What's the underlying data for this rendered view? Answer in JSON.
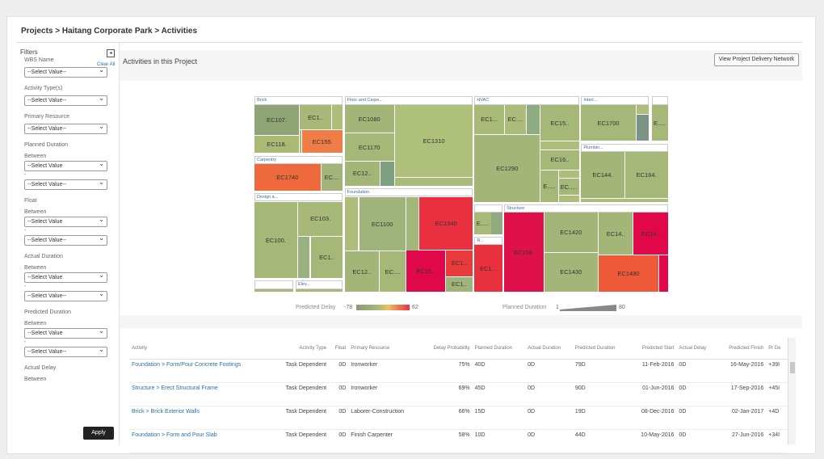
{
  "breadcrumb": "Projects > Haitang Corporate Park > Activities",
  "filters": {
    "title": "Filters",
    "clear_all": "Clear All",
    "apply": "Apply",
    "fields": [
      {
        "label": "WBS Name",
        "value": "--Select Value--"
      },
      {
        "label": "Activity Type(s)",
        "value": "--Select Value--"
      },
      {
        "label": "Primary Resource",
        "value": "--Select Value--"
      },
      {
        "label": "Planned Duration",
        "sub": "Between",
        "value": "--Select Value",
        "value2": "--Select Value--"
      },
      {
        "label": "Float",
        "sub": "Between",
        "value": "--Select Value",
        "value2": "--Select Value--"
      },
      {
        "label": "Actual Duration",
        "sub": "Between",
        "value": "--Select Value",
        "value2": "--Select Value--"
      },
      {
        "label": "Predicted Duration",
        "sub": "Between",
        "value": "--Select Value",
        "value2": "--Select Value--"
      },
      {
        "label": "Actual Delay",
        "sub": "Between"
      }
    ]
  },
  "main": {
    "title": "Activities in this Project",
    "network_button": "View Project Delivery Network"
  },
  "treemap": {
    "groups": [
      "Brick",
      "Floor and Carpe...",
      "HVAC",
      "Interi...",
      "",
      "Carpentry",
      "Plumbin...",
      "Design a...",
      "Foundation",
      "",
      "R...",
      "Structure",
      "",
      "Elev..."
    ],
    "tiles": [
      {
        "label": "EC107.",
        "color": "#8fa475"
      },
      {
        "label": "EC1..",
        "color": "#a9b878"
      },
      {
        "label": "",
        "color": "#adbe7a"
      },
      {
        "label": "EC118.",
        "color": "#a9ba75"
      },
      {
        "label": "",
        "color": "#a9ba78"
      },
      {
        "label": "EC155.",
        "color": "#ef7d45"
      },
      {
        "label": "EC1740",
        "color": "#ee6a3d"
      },
      {
        "label": "EC....",
        "color": "#a3b57a"
      },
      {
        "label": "EC100.",
        "color": "#a6b878"
      },
      {
        "label": "EC103.",
        "color": "#a8b878"
      },
      {
        "label": "",
        "color": "#99b17f"
      },
      {
        "label": "EC1..",
        "color": "#a6b878"
      },
      {
        "label": "",
        "color": "#a9ba78"
      },
      {
        "label": "",
        "color": "#a9ba78"
      },
      {
        "label": "EC1080",
        "color": "#a3b677"
      },
      {
        "label": "EC1170",
        "color": "#a6b878"
      },
      {
        "label": "EC12..",
        "color": "#a3b677"
      },
      {
        "label": "",
        "color": "#7fa080"
      },
      {
        "label": "EC1310",
        "color": "#afc07a"
      },
      {
        "label": "",
        "color": "#a9bb78"
      },
      {
        "label": "",
        "color": "#aebe7a"
      },
      {
        "label": "EC1100",
        "color": "#9fb47a"
      },
      {
        "label": "",
        "color": "#a3b77b"
      },
      {
        "label": "EC1340",
        "color": "#e8303f"
      },
      {
        "label": "EC12..",
        "color": "#a3b677"
      },
      {
        "label": "EC....",
        "color": "#a6b878"
      },
      {
        "label": "EC15..",
        "color": "#e0084a"
      },
      {
        "label": "EC1..",
        "color": "#e83a3a"
      },
      {
        "label": "EC1..",
        "color": "#9fb47a"
      },
      {
        "label": "EC1...",
        "color": "#a9ba78"
      },
      {
        "label": "EC....",
        "color": "#acbc7a"
      },
      {
        "label": "",
        "color": "#8fac80"
      },
      {
        "label": "EC15..",
        "color": "#a6b878"
      },
      {
        "label": "EC1290",
        "color": "#a3b677"
      },
      {
        "label": "",
        "color": "#aebe7a"
      },
      {
        "label": "EC16..",
        "color": "#a6b878"
      },
      {
        "label": "E.....",
        "color": "#a6b878"
      },
      {
        "label": "",
        "color": "#aebe7a"
      },
      {
        "label": "EC.....",
        "color": "#a6b878"
      },
      {
        "label": "",
        "color": "#aebe7a"
      },
      {
        "label": "EC1700",
        "color": "#a6b878"
      },
      {
        "label": "",
        "color": "#aebe7a"
      },
      {
        "label": "",
        "color": "#7a9488"
      },
      {
        "label": "E.....",
        "color": "#a6b878"
      },
      {
        "label": "EC144.",
        "color": "#a3b677"
      },
      {
        "label": "EC164.",
        "color": "#a6b878"
      },
      {
        "label": "",
        "color": "#aebe7a"
      },
      {
        "label": "E.....",
        "color": "#a9ba78"
      },
      {
        "label": "",
        "color": "#90ab80"
      },
      {
        "label": "EC1...",
        "color": "#e8303f"
      },
      {
        "label": "EC159.",
        "color": "#e0104a"
      },
      {
        "label": "EC1420",
        "color": "#a3b677"
      },
      {
        "label": "EC14..",
        "color": "#a3b677"
      },
      {
        "label": "EC14..",
        "color": "#e0084a"
      },
      {
        "label": "EC1430",
        "color": "#a3b677"
      },
      {
        "label": "EC1480",
        "color": "#ee5a38"
      },
      {
        "label": "",
        "color": "#e0084a"
      }
    ],
    "legend": {
      "delay_label": "Predicted Delay",
      "delay_min": "-78",
      "delay_max": "62",
      "duration_label": "Planned Duration",
      "duration_min": "1",
      "duration_max": "80"
    }
  },
  "table": {
    "columns": [
      "Activity",
      "Activity Type",
      "Float",
      "Primary Resource",
      "Delay Probability",
      "Planned Duration",
      "Actual Duration",
      "Predicted Duration",
      "Predicted Start",
      "Actual Delay",
      "Predicted Finish",
      "Pr De"
    ],
    "rows": [
      [
        "Foundation > Form/Pour Concrete Footings",
        "Task Dependent",
        "0D",
        "Ironworker",
        "75%",
        "40D",
        "0D",
        "79D",
        "11-Feb-2016",
        "0D",
        "16-May-2016",
        "+39I"
      ],
      [
        "Structure > Erect Structural Frame",
        "Task Dependent",
        "0D",
        "Ironworker",
        "69%",
        "45D",
        "0D",
        "90D",
        "01-Jun-2016",
        "0D",
        "17-Sep-2016",
        "+45I"
      ],
      [
        "Brick > Brick Exterior Walls",
        "Task Dependent",
        "0D",
        "Laborer-Construction",
        "66%",
        "15D",
        "0D",
        "19D",
        "08-Dec-2016",
        "0D",
        "02-Jan-2017",
        "+4D"
      ],
      [
        "Foundation > Form and Pour Slab",
        "Task Dependent",
        "0D",
        "Finish Carpenter",
        "58%",
        "10D",
        "0D",
        "44D",
        "10-May-2016",
        "0D",
        "27-Jun-2016",
        "+34I"
      ]
    ]
  }
}
